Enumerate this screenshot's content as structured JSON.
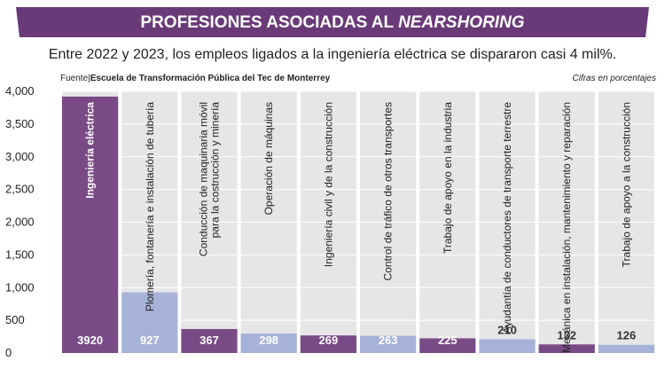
{
  "chart_data": {
    "type": "bar",
    "title": "PROFESIONES ASOCIADAS AL",
    "title_emphasis": "NEARSHORING",
    "subtitle": "Entre 2022 y 2023, los empleos ligados a la ingeniería eléctrica se dispararon casi 4 mil%.",
    "source_label": "Fuente|",
    "source": "Escuela de Transformación Pública del Tec de Monterrey",
    "note": "Cifras en porcentajes",
    "categories": [
      "Ingeniería eléctrica",
      "Plomería, fontanería e instalación de tubería",
      "Conducción de maquinaria móvil\npara la costrucción y minería",
      "Operación de máquinas",
      "Ingeniería civil y de la construcción",
      "Control de tráfico de otros transportes",
      "Trabajo de apoyo en la industria",
      "Ayudantía de conductores de transporte terrestre",
      "Mecánica en instalación, mantenimiento y reparación",
      "Trabajo de apoyo a la construcción"
    ],
    "values": [
      3920,
      927,
      367,
      298,
      269,
      263,
      225,
      210,
      132,
      126
    ],
    "colors": [
      "#7a4a86",
      "#a6b2d8",
      "#7a4a86",
      "#a6b2d8",
      "#7a4a86",
      "#a6b2d8",
      "#7a4a86",
      "#a6b2d8",
      "#7a4a86",
      "#a6b2d8"
    ],
    "ylim": [
      0,
      4000
    ],
    "yticks": [
      0,
      500,
      {
        "value": 1000,
        "label": "1,000"
      },
      {
        "value": 1500,
        "label": "1,500"
      },
      {
        "value": 2000,
        "label": "2,000"
      },
      {
        "value": 2500,
        "label": "2,500"
      },
      {
        "value": 3000,
        "label": "3,000"
      },
      {
        "value": 3500,
        "label": "3,500"
      },
      {
        "value": 4000,
        "label": "4,000"
      }
    ],
    "grid": true
  }
}
